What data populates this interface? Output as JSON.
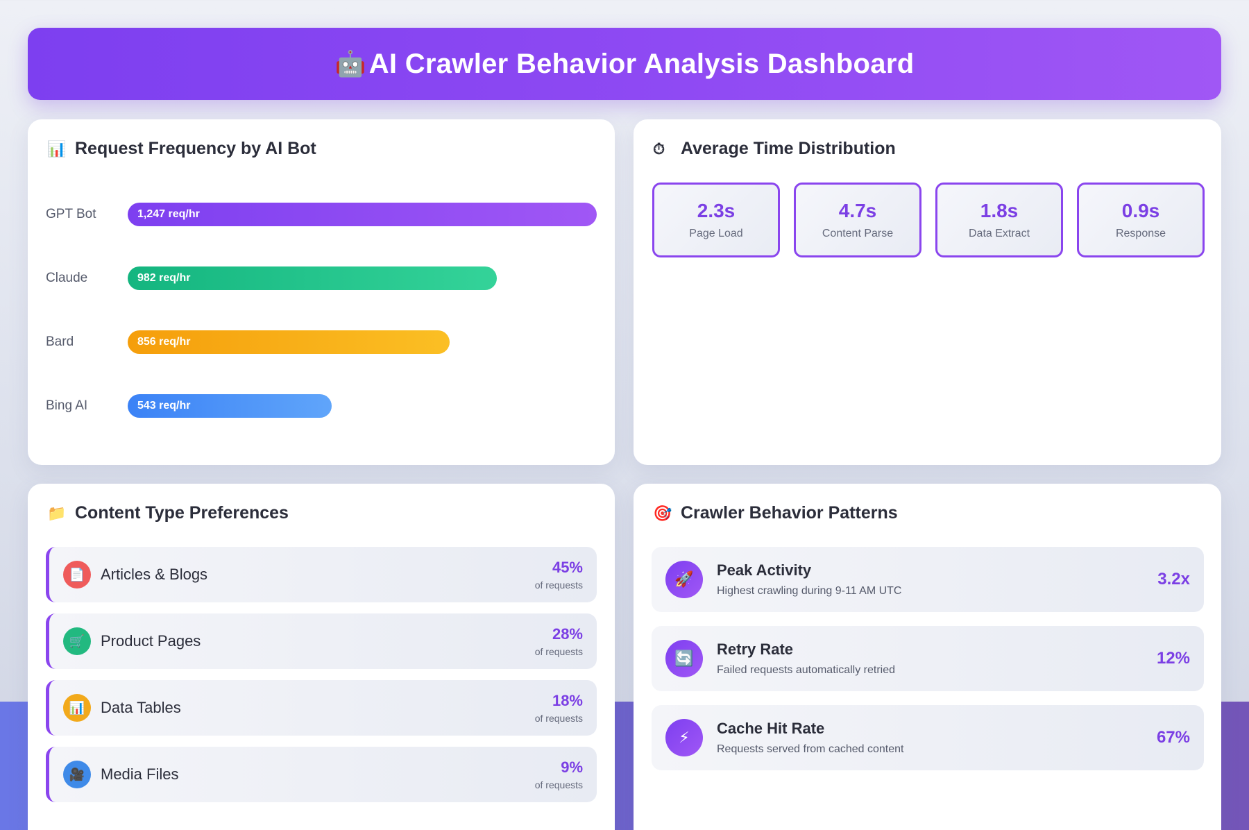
{
  "header": {
    "icon": "robot-icon",
    "icon_glyph": "🤖",
    "title": "AI Crawler Behavior Analysis Dashboard"
  },
  "request_frequency": {
    "title": "Request Frequency by AI Bot",
    "icon": "bar-chart-icon",
    "icon_glyph": "📊",
    "max_value": 1247,
    "bots": [
      {
        "name": "GPT Bot",
        "value": 1247,
        "label": "1,247 req/hr",
        "color_from": "#7d3ff0",
        "color_to": "#a057f5"
      },
      {
        "name": "Claude",
        "value": 982,
        "label": "982 req/hr",
        "color_from": "#14b57f",
        "color_to": "#34d399"
      },
      {
        "name": "Bard",
        "value": 856,
        "label": "856 req/hr",
        "color_from": "#f59e0b",
        "color_to": "#fbbf24"
      },
      {
        "name": "Bing AI",
        "value": 543,
        "label": "543 req/hr",
        "color_from": "#3b82f6",
        "color_to": "#60a5fa"
      }
    ]
  },
  "time_distribution": {
    "title": "Average Time Distribution",
    "icon": "stopwatch-icon",
    "icon_glyph": "⏱",
    "tiles": [
      {
        "value": "2.3s",
        "label": "Page Load"
      },
      {
        "value": "4.7s",
        "label": "Content Parse"
      },
      {
        "value": "1.8s",
        "label": "Data Extract"
      },
      {
        "value": "0.9s",
        "label": "Response"
      }
    ]
  },
  "content_types": {
    "title": "Content Type Preferences",
    "icon": "folder-icon",
    "icon_glyph": "📁",
    "sub_label": "of requests",
    "items": [
      {
        "label": "Articles & Blogs",
        "percent": "45%",
        "icon": "document-icon",
        "icon_glyph": "📄",
        "icon_color": "#ef5b5b"
      },
      {
        "label": "Product Pages",
        "percent": "28%",
        "icon": "shopping-cart-icon",
        "icon_glyph": "🛒",
        "icon_color": "#22b980"
      },
      {
        "label": "Data Tables",
        "percent": "18%",
        "icon": "bar-chart-icon",
        "icon_glyph": "📊",
        "icon_color": "#f2a91b"
      },
      {
        "label": "Media Files",
        "percent": "9%",
        "icon": "video-camera-icon",
        "icon_glyph": "🎥",
        "icon_color": "#3f8ae8"
      }
    ]
  },
  "behavior_patterns": {
    "title": "Crawler Behavior Patterns",
    "icon": "target-icon",
    "icon_glyph": "🎯",
    "items": [
      {
        "title": "Peak Activity",
        "desc": "Highest crawling during 9-11 AM UTC",
        "value": "3.2x",
        "icon": "rocket-icon",
        "icon_glyph": "🚀"
      },
      {
        "title": "Retry Rate",
        "desc": "Failed requests automatically retried",
        "value": "12%",
        "icon": "refresh-icon",
        "icon_glyph": "🔄"
      },
      {
        "title": "Cache Hit Rate",
        "desc": "Requests served from cached content",
        "value": "67%",
        "icon": "lightning-icon",
        "icon_glyph": "⚡"
      }
    ]
  }
}
